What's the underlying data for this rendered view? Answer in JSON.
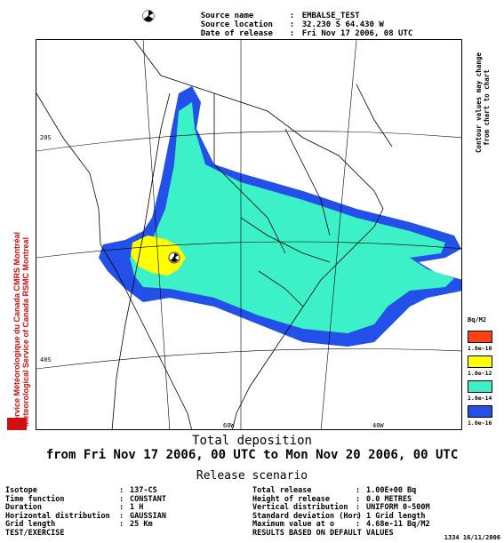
{
  "header": {
    "rows": [
      {
        "key": "Source name",
        "value": "EMBALSE_TEST"
      },
      {
        "key": "Source location",
        "value": "32.230 S 64.430 W"
      },
      {
        "key": "Date of release",
        "value": "Fri Nov 17 2006, 08 UTC"
      }
    ]
  },
  "side_note": {
    "line1": "Contour values may change",
    "line2": "from chart to chart"
  },
  "agency": {
    "line1": "Service Météorologique du Canada   CMRS Montréal",
    "line2": "Meteorological Service of Canada   RSMC Montreal"
  },
  "map": {
    "lat_labels": [
      "20S",
      "40S"
    ],
    "lon_labels": [
      "60W",
      "40W"
    ],
    "colors": {
      "land": "#ffffff",
      "blue": "#2250e8",
      "cyan": "#3cf0c8",
      "yellow": "#ffff00",
      "orange": "#ff4010"
    }
  },
  "legend": {
    "unit": "Bq/M2",
    "items": [
      {
        "label": "1.0e-10",
        "color": "#ff4010"
      },
      {
        "label": "1.0e-12",
        "color": "#ffff00"
      },
      {
        "label": "1.0e-14",
        "color": "#3cf0c8"
      },
      {
        "label": "1.0e-16",
        "color": "#2250e8"
      }
    ]
  },
  "title": {
    "line1": "Total deposition",
    "line2": "from Fri Nov 17 2006, 00 UTC to Mon Nov 20 2006, 00 UTC",
    "line3": "Release scenario"
  },
  "scenario": {
    "left": [
      {
        "key": "Isotope",
        "value": "137-CS"
      },
      {
        "key": "Time function",
        "value": "CONSTANT"
      },
      {
        "key": "Duration",
        "value": "1 H"
      },
      {
        "key": "Horizontal distribution",
        "value": "GAUSSIAN"
      },
      {
        "key": "Grid length",
        "value": "25 Km"
      },
      {
        "key": "TEST/EXERCISE",
        "value": ""
      }
    ],
    "right": [
      {
        "key": "Total release",
        "value": "1.00E+00 Bq"
      },
      {
        "key": "Height of release",
        "value": "0.0 METRES"
      },
      {
        "key": "Vertical distribution",
        "value": "UNIFORM 0-500M"
      },
      {
        "key": "Standard deviation (Hor)",
        "value": "1 Grid length"
      },
      {
        "key": "Maximum value at o",
        "value": "4.68e-11 Bq/M2"
      },
      {
        "key": "RESULTS BASED ON DEFAULT VALUES",
        "value": ""
      }
    ]
  },
  "footer": "1334 16/11/2006"
}
